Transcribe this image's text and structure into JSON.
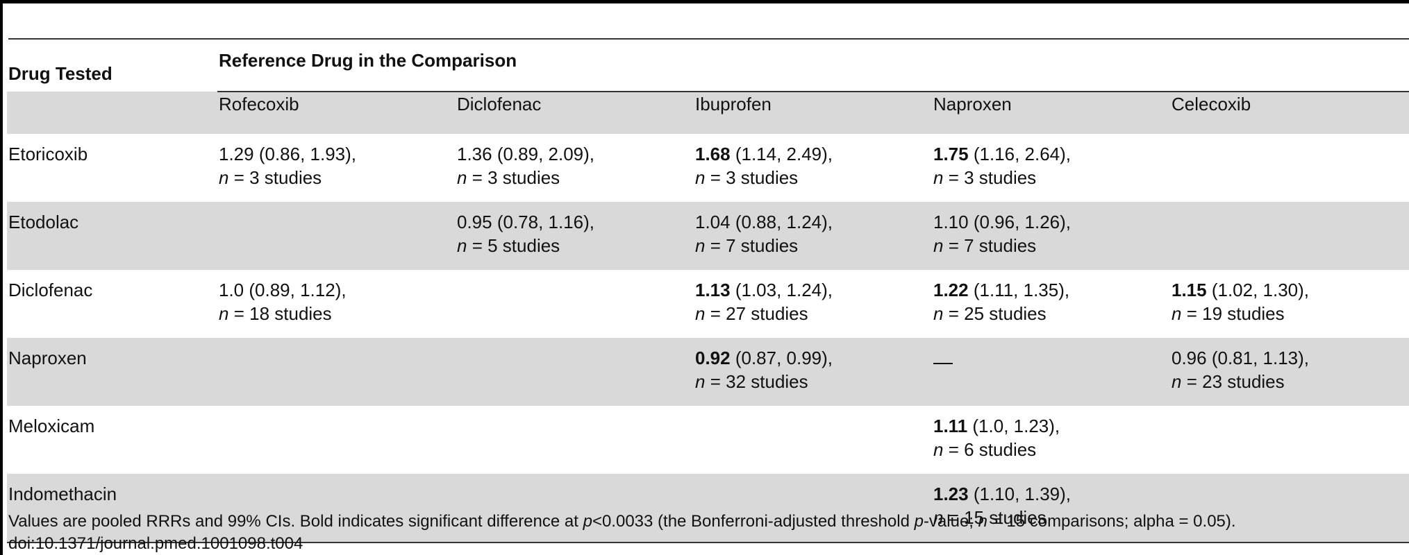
{
  "table": {
    "drug_tested_label": "Drug Tested",
    "reference_label": "Reference Drug in the Comparison",
    "columns": [
      "Rofecoxib",
      "Diclofenac",
      "Ibuprofen",
      "Naproxen",
      "Celecoxib"
    ],
    "rows": [
      {
        "drug": "Etoricoxib",
        "cells": [
          {
            "value": "1.29",
            "ci": " (0.86, 1.93),",
            "bold": false,
            "n": "3"
          },
          {
            "value": "1.36",
            "ci": " (0.89, 2.09),",
            "bold": false,
            "n": "3"
          },
          {
            "value": "1.68",
            "ci": " (1.14, 2.49),",
            "bold": true,
            "n": "3"
          },
          {
            "value": "1.75",
            "ci": " (1.16, 2.64),",
            "bold": true,
            "n": "3"
          },
          null
        ]
      },
      {
        "drug": "Etodolac",
        "cells": [
          null,
          {
            "value": "0.95",
            "ci": " (0.78, 1.16),",
            "bold": false,
            "n": "5"
          },
          {
            "value": "1.04",
            "ci": " (0.88, 1.24),",
            "bold": false,
            "n": "7"
          },
          {
            "value": "1.10",
            "ci": " (0.96, 1.26),",
            "bold": false,
            "n": "7"
          },
          null
        ]
      },
      {
        "drug": "Diclofenac",
        "cells": [
          {
            "value": "1.0",
            "ci": " (0.89, 1.12),",
            "bold": false,
            "n": "18"
          },
          null,
          {
            "value": "1.13",
            "ci": " (1.03, 1.24),",
            "bold": true,
            "n": "27"
          },
          {
            "value": "1.22",
            "ci": " (1.11, 1.35),",
            "bold": true,
            "n": "25"
          },
          {
            "value": "1.15",
            "ci": " (1.02, 1.30),",
            "bold": true,
            "n": "19"
          }
        ]
      },
      {
        "drug": "Naproxen",
        "cells": [
          null,
          null,
          {
            "value": "0.92",
            "ci": " (0.87, 0.99),",
            "bold": true,
            "n": "32"
          },
          "dash",
          {
            "value": "0.96",
            "ci": " (0.81, 1.13),",
            "bold": false,
            "n": "23"
          }
        ]
      },
      {
        "drug": "Meloxicam",
        "cells": [
          null,
          null,
          null,
          {
            "value": "1.11",
            "ci": " (1.0, 1.23),",
            "bold": true,
            "n": "6"
          },
          null
        ]
      },
      {
        "drug": "Indomethacin",
        "cells": [
          null,
          null,
          null,
          {
            "value": "1.23",
            "ci": " (1.10, 1.39),",
            "bold": true,
            "n": "15"
          },
          null
        ]
      }
    ]
  },
  "footnote": {
    "part1": "Values are pooled RRRs and 99% CIs. Bold indicates significant difference at ",
    "p1": "p",
    "part2": "<0.0033 (the Bonferroni-adjusted threshold ",
    "p2": "p",
    "part3": "-value; ",
    "n": "n",
    "part4": " = 15 comparisons; alpha = 0.05).",
    "doi": "doi:10.1371/journal.pmed.1001098.t004"
  }
}
